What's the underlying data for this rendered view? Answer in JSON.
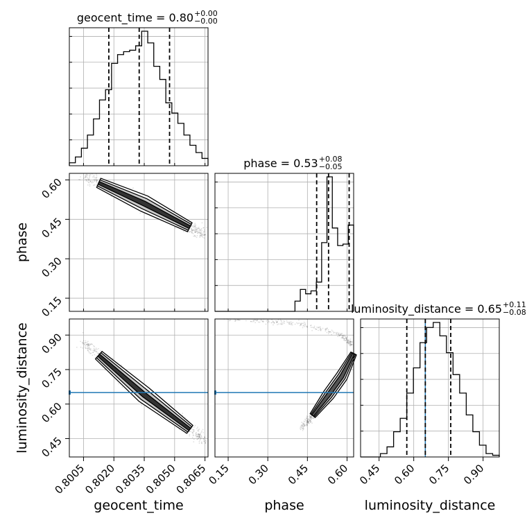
{
  "chart_data": {
    "type": "corner",
    "params": [
      "geocent_time",
      "phase",
      "luminosity_distance"
    ],
    "truth": {
      "luminosity_distance": 0.65,
      "color": "#1f77b4"
    },
    "panels": {
      "geocent_time": {
        "title_main": "geocent_time = 0.80",
        "title_plus": "+0.00",
        "title_minus": "−0.00",
        "median": 0.80325,
        "q_low": 0.80175,
        "q_high": 0.80475,
        "hist_range": [
          0.7998,
          0.80665
        ],
        "hist": [
          0.02,
          0.06,
          0.12,
          0.21,
          0.32,
          0.45,
          0.52,
          0.7,
          0.76,
          0.78,
          0.79,
          0.82,
          0.92,
          0.84,
          0.68,
          0.59,
          0.43,
          0.36,
          0.29,
          0.21,
          0.14,
          0.09,
          0.05
        ]
      },
      "phase": {
        "title_main": "phase = 0.53",
        "title_plus": "+0.08",
        "title_minus": "−0.05",
        "median": 0.53,
        "q_low": 0.485,
        "q_high": 0.608,
        "hist_range": [
          0.1,
          0.625
        ],
        "hist": [
          0,
          0,
          0,
          0,
          0,
          0,
          0,
          0,
          0,
          0,
          0,
          0,
          0,
          0,
          0,
          0.07,
          0.15,
          0.12,
          0.14,
          0.2,
          0.47,
          0.92,
          0.57,
          0.45,
          0.46,
          0.59
        ]
      },
      "luminosity_distance": {
        "title_main": "luminosity_distance = 0.65",
        "title_plus": "+0.11",
        "title_minus": "−0.08",
        "median": 0.65,
        "q_low": 0.57,
        "q_high": 0.76,
        "hist_range": [
          0.37,
          0.97
        ],
        "hist": [
          0,
          0,
          0,
          0.02,
          0.06,
          0.15,
          0.23,
          0.38,
          0.53,
          0.68,
          0.77,
          0.8,
          0.72,
          0.62,
          0.49,
          0.38,
          0.25,
          0.15,
          0.07,
          0.02,
          0.01
        ]
      }
    },
    "axes": {
      "geocent_time": {
        "ticks": [
          0.8005,
          0.802,
          0.8035,
          0.805,
          0.8065
        ],
        "tick_labels": [
          "0.8005",
          "0.8020",
          "0.8035",
          "0.8050",
          "0.8065"
        ],
        "range": [
          0.7998,
          0.80665
        ]
      },
      "phase": {
        "ticks": [
          0.15,
          0.3,
          0.45,
          0.6
        ],
        "tick_labels": [
          "0.15",
          "0.30",
          "0.45",
          "0.60"
        ],
        "range": [
          0.1,
          0.625
        ]
      },
      "luminosity_distance": {
        "ticks": [
          0.45,
          0.6,
          0.75,
          0.9
        ],
        "tick_labels": [
          "0.45",
          "0.60",
          "0.75",
          "0.90"
        ],
        "range": [
          0.37,
          0.97
        ]
      }
    },
    "axis_labels": {
      "geocent_time": "geocent_time",
      "phase": "phase",
      "luminosity_distance": "luminosity_distance"
    },
    "grid": true,
    "correlations": {
      "time_phase": {
        "x": [
          0.8005,
          0.8035,
          0.8065
        ],
        "y": [
          0.615,
          0.51,
          0.39
        ]
      },
      "time_distance": {
        "x": [
          0.8005,
          0.8035,
          0.8065
        ],
        "y": [
          0.87,
          0.64,
          0.44
        ]
      },
      "phase_distance": {
        "upper_arm": [
          [
            0.13,
            0.97
          ],
          [
            0.42,
            0.95
          ],
          [
            0.58,
            0.9
          ],
          [
            0.625,
            0.85
          ]
        ],
        "lower_arm": [
          [
            0.43,
            0.5
          ],
          [
            0.47,
            0.55
          ],
          [
            0.53,
            0.64
          ],
          [
            0.58,
            0.72
          ],
          [
            0.625,
            0.82
          ]
        ]
      }
    }
  }
}
